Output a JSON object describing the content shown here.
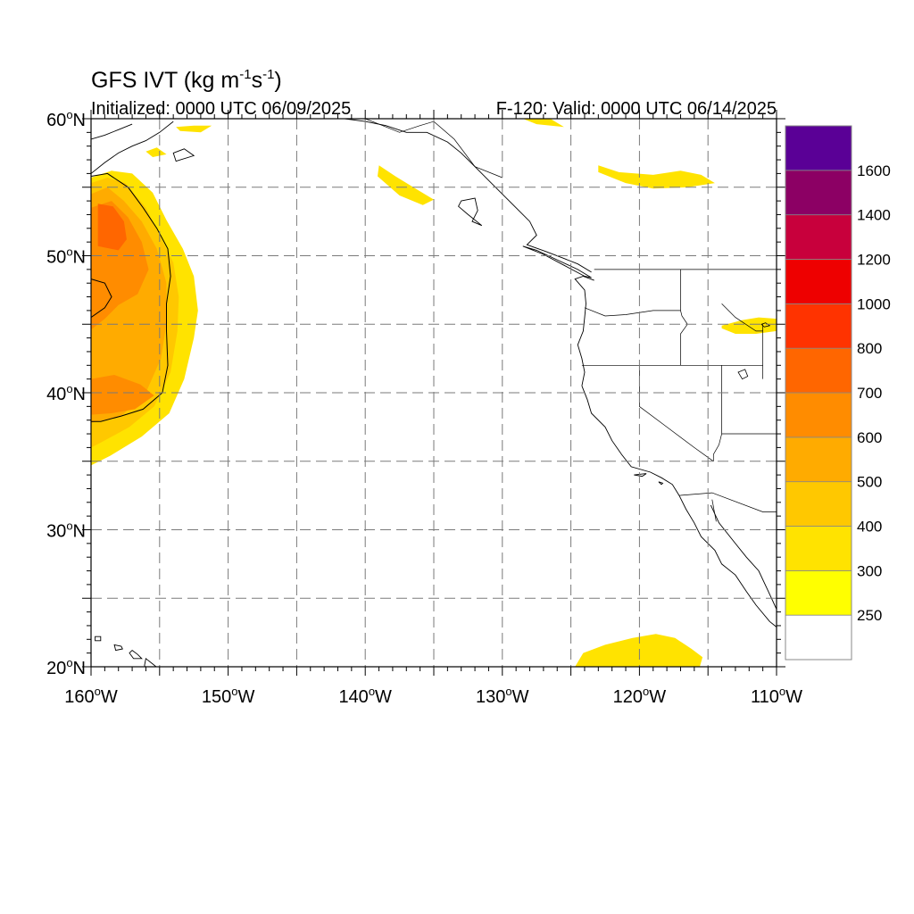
{
  "title": {
    "main": "GFS IVT (kg m",
    "sup1": "-1",
    "mid": "s",
    "sup2": "-1",
    "end": ")"
  },
  "subtitle_left": "Initialized: 0000 UTC 06/09/2025",
  "subtitle_right": "F-120: Valid: 0000 UTC 06/14/2025",
  "map": {
    "projection": "cylindrical equidistant",
    "lon_range": [
      -160,
      -110
    ],
    "lat_range": [
      20,
      60
    ],
    "gridlines": "dashed every 5 degrees",
    "lon_labels": [
      {
        "value": -160,
        "text": "160",
        "deg": "o",
        "hemi": "W"
      },
      {
        "value": -150,
        "text": "150",
        "deg": "o",
        "hemi": "W"
      },
      {
        "value": -140,
        "text": "140",
        "deg": "o",
        "hemi": "W"
      },
      {
        "value": -130,
        "text": "130",
        "deg": "o",
        "hemi": "W"
      },
      {
        "value": -120,
        "text": "120",
        "deg": "o",
        "hemi": "W"
      },
      {
        "value": -110,
        "text": "110",
        "deg": "o",
        "hemi": "W"
      }
    ],
    "lat_labels": [
      {
        "value": 60,
        "text": "60",
        "deg": "o",
        "hemi": "N"
      },
      {
        "value": 50,
        "text": "50",
        "deg": "o",
        "hemi": "N"
      },
      {
        "value": 40,
        "text": "40",
        "deg": "o",
        "hemi": "N"
      },
      {
        "value": 30,
        "text": "30",
        "deg": "o",
        "hemi": "N"
      },
      {
        "value": 20,
        "text": "20",
        "deg": "o",
        "hemi": "N"
      }
    ]
  },
  "colorbar": {
    "levels": [
      "250",
      "300",
      "400",
      "500",
      "600",
      "700",
      "800",
      "1000",
      "1200",
      "1400",
      "1600"
    ],
    "colors": [
      "#ffffff",
      "#ffff00",
      "#ffe300",
      "#ffc800",
      "#ffab00",
      "#ff8c00",
      "#ff6600",
      "#ff3300",
      "#ee0000",
      "#c8003c",
      "#8c0064",
      "#5a0096"
    ]
  },
  "ivt_regions": [
    {
      "name": "west-plume-outer",
      "color": "#ffe300",
      "points": [
        [
          -160,
          55.7
        ],
        [
          -158.5,
          56.2
        ],
        [
          -157,
          56
        ],
        [
          -155.5,
          54.6
        ],
        [
          -154.5,
          52.6
        ],
        [
          -153.3,
          50.5
        ],
        [
          -152.5,
          48.5
        ],
        [
          -152.2,
          46
        ],
        [
          -152.5,
          44
        ],
        [
          -153.2,
          41
        ],
        [
          -154.3,
          38.5
        ],
        [
          -156.3,
          36.8
        ],
        [
          -158.6,
          35.4
        ],
        [
          -160,
          34.7
        ]
      ]
    },
    {
      "name": "west-plume-400",
      "color": "#ffc800",
      "points": [
        [
          -160,
          55.3
        ],
        [
          -158.8,
          55.7
        ],
        [
          -157.5,
          55.3
        ],
        [
          -156,
          53.5
        ],
        [
          -155,
          51.5
        ],
        [
          -154,
          49.5
        ],
        [
          -153.6,
          47
        ],
        [
          -153.7,
          44.5
        ],
        [
          -154.2,
          41.5
        ],
        [
          -155.4,
          39
        ],
        [
          -157.2,
          37.5
        ],
        [
          -159.4,
          36.3
        ],
        [
          -160,
          36
        ]
      ]
    },
    {
      "name": "west-plume-500",
      "color": "#ffab00",
      "points": [
        [
          -160,
          54.5
        ],
        [
          -158.8,
          55
        ],
        [
          -157.6,
          54
        ],
        [
          -156.3,
          52.5
        ],
        [
          -155.2,
          50.5
        ],
        [
          -154.5,
          48
        ],
        [
          -154.5,
          45
        ],
        [
          -154.9,
          42.5
        ],
        [
          -156,
          40
        ],
        [
          -157.8,
          38.3
        ],
        [
          -160,
          37.8
        ]
      ]
    },
    {
      "name": "west-plume-600",
      "color": "#ff8c00",
      "points": [
        [
          -160,
          53.5
        ],
        [
          -158.5,
          54
        ],
        [
          -157.3,
          52.8
        ],
        [
          -156.3,
          51
        ],
        [
          -155.8,
          49
        ],
        [
          -156.6,
          47.2
        ],
        [
          -158,
          46.4
        ],
        [
          -159,
          45.4
        ],
        [
          -160,
          44.6
        ]
      ]
    },
    {
      "name": "west-plume-600b",
      "color": "#ff8c00",
      "points": [
        [
          -160,
          41
        ],
        [
          -158.3,
          41.3
        ],
        [
          -156.4,
          40.6
        ],
        [
          -155.4,
          39.8
        ],
        [
          -156.8,
          38.8
        ],
        [
          -158.5,
          38.5
        ],
        [
          -160,
          38.4
        ]
      ]
    },
    {
      "name": "west-plume-700",
      "color": "#ff6600",
      "points": [
        [
          -159.5,
          53.8
        ],
        [
          -158.4,
          53.6
        ],
        [
          -157.6,
          52.5
        ],
        [
          -157.4,
          51.2
        ],
        [
          -158,
          50.4
        ],
        [
          -159.5,
          50.7
        ]
      ]
    },
    {
      "name": "sw-blob",
      "color": "#ffe300",
      "points": [
        [
          -124.7,
          20
        ],
        [
          -124.1,
          21
        ],
        [
          -122.5,
          21.6
        ],
        [
          -120.5,
          22.1
        ],
        [
          -118.8,
          22.4
        ],
        [
          -117.4,
          22.1
        ],
        [
          -116.2,
          21.3
        ],
        [
          -115.4,
          20.7
        ],
        [
          -115.6,
          20
        ]
      ]
    },
    {
      "name": "north-streak",
      "color": "#ffe300",
      "points": [
        [
          -123,
          56.6
        ],
        [
          -121.5,
          56.1
        ],
        [
          -119,
          55.9
        ],
        [
          -117,
          56.2
        ],
        [
          -115.5,
          55.9
        ],
        [
          -114.5,
          55.3
        ],
        [
          -116.5,
          55
        ],
        [
          -119,
          54.9
        ],
        [
          -121,
          55.3
        ],
        [
          -123,
          56.1
        ]
      ]
    },
    {
      "name": "gulf-streak",
      "color": "#ffe300",
      "points": [
        [
          -139,
          56.6
        ],
        [
          -137.8,
          55.8
        ],
        [
          -136.5,
          55
        ],
        [
          -135,
          54.1
        ],
        [
          -135.8,
          53.7
        ],
        [
          -137.5,
          54.4
        ],
        [
          -139.1,
          55.8
        ]
      ]
    },
    {
      "name": "top-streak",
      "color": "#ffe300",
      "points": [
        [
          -128.5,
          60
        ],
        [
          -126.5,
          60
        ],
        [
          -125.5,
          59.4
        ],
        [
          -127.5,
          59.6
        ]
      ]
    },
    {
      "name": "alaska-streak",
      "color": "#ffe300",
      "points": [
        [
          -153.8,
          59.4
        ],
        [
          -152.5,
          59.5
        ],
        [
          -151.2,
          59.5
        ],
        [
          -152,
          59
        ],
        [
          -153.5,
          59.1
        ]
      ]
    },
    {
      "name": "small-patch-a",
      "color": "#ffe300",
      "points": [
        [
          -156,
          57.6
        ],
        [
          -155.2,
          57.9
        ],
        [
          -154.5,
          57.4
        ],
        [
          -155.5,
          57.2
        ]
      ]
    },
    {
      "name": "small-patch-b",
      "color": "#ffe300",
      "points": [
        [
          -114,
          44.9
        ],
        [
          -112.5,
          45.3
        ],
        [
          -111.3,
          45.5
        ],
        [
          -110,
          45.4
        ],
        [
          -110,
          44.5
        ],
        [
          -111.5,
          44.3
        ],
        [
          -113,
          44.3
        ],
        [
          -114,
          44.7
        ]
      ]
    }
  ],
  "contour_600": [
    [
      -160,
      55.8
    ],
    [
      -158.8,
      56
    ],
    [
      -157.3,
      55
    ],
    [
      -156.2,
      53.5
    ],
    [
      -155.2,
      52
    ],
    [
      -154.4,
      50.5
    ],
    [
      -154.2,
      48.5
    ],
    [
      -154.5,
      46.5
    ],
    [
      -154.5,
      44.5
    ],
    [
      -154.4,
      42
    ],
    [
      -154.8,
      40
    ],
    [
      -156.2,
      38.8
    ],
    [
      -157.8,
      38.3
    ],
    [
      -159.3,
      37.9
    ],
    [
      -160,
      37.9
    ]
  ],
  "contour_600_inner": [
    [
      -160,
      45.5
    ],
    [
      -159,
      46.2
    ],
    [
      -158.5,
      47
    ],
    [
      -159,
      48
    ],
    [
      -160,
      48.3
    ]
  ],
  "coastlines": [
    [
      [
        -124.2,
        40.5
      ],
      [
        -124,
        41.5
      ],
      [
        -124.2,
        42.5
      ],
      [
        -124.5,
        43.5
      ],
      [
        -124.1,
        44.5
      ],
      [
        -124,
        45.5
      ],
      [
        -123.9,
        46.5
      ],
      [
        -124,
        47.5
      ],
      [
        -124.7,
        48.3
      ],
      [
        -124.1,
        48.5
      ],
      [
        -123.3,
        48.2
      ]
    ],
    [
      [
        -124.2,
        40.5
      ],
      [
        -123.8,
        39.5
      ],
      [
        -123.5,
        38.5
      ],
      [
        -122.5,
        37.5
      ],
      [
        -122,
        36.5
      ],
      [
        -121.3,
        35.5
      ],
      [
        -120.6,
        34.6
      ],
      [
        -119.2,
        34.2
      ],
      [
        -118.4,
        33.8
      ],
      [
        -117.6,
        33.3
      ],
      [
        -117.1,
        32.5
      ],
      [
        -116.6,
        31.5
      ],
      [
        -116,
        30.5
      ],
      [
        -115.5,
        29.5
      ],
      [
        -114.5,
        28.5
      ],
      [
        -114,
        27.5
      ],
      [
        -113,
        26.7
      ],
      [
        -112.2,
        25.5
      ],
      [
        -111.5,
        24.5
      ],
      [
        -110.5,
        23.3
      ],
      [
        -110,
        22.9
      ]
    ],
    [
      [
        -114.8,
        31.8
      ],
      [
        -114.2,
        30.5
      ],
      [
        -113,
        29
      ],
      [
        -112.2,
        28
      ],
      [
        -111.3,
        27
      ],
      [
        -110.6,
        25.5
      ],
      [
        -110,
        24.2
      ]
    ],
    [
      [
        -123.5,
        48.8
      ],
      [
        -124.5,
        49.4
      ],
      [
        -125.5,
        49.8
      ],
      [
        -126.8,
        50.3
      ],
      [
        -128.2,
        50.8
      ],
      [
        -127.5,
        51.5
      ],
      [
        -128,
        52.5
      ],
      [
        -129,
        53.5
      ],
      [
        -130,
        54.5
      ],
      [
        -131,
        55.5
      ],
      [
        -132,
        56.5
      ],
      [
        -133,
        57.5
      ],
      [
        -134,
        58.3
      ],
      [
        -135.5,
        59
      ],
      [
        -137,
        59
      ],
      [
        -138.5,
        59.5
      ],
      [
        -140,
        59.8
      ],
      [
        -141.5,
        60
      ]
    ],
    [
      [
        -154,
        59.8
      ],
      [
        -155,
        59
      ],
      [
        -156,
        58.4
      ],
      [
        -157,
        58
      ],
      [
        -158,
        57.5
      ],
      [
        -159,
        56.8
      ],
      [
        -160,
        56
      ]
    ],
    [
      [
        -157,
        59.6
      ],
      [
        -158,
        59.2
      ],
      [
        -159,
        58.8
      ],
      [
        -160,
        58.5
      ]
    ]
  ],
  "islands": [
    [
      [
        -156,
        20.6
      ],
      [
        -155.5,
        20.2
      ],
      [
        -155,
        19.8
      ],
      [
        -155.9,
        19.6
      ],
      [
        -156.1,
        20.1
      ]
    ],
    [
      [
        -157,
        21.2
      ],
      [
        -156.6,
        20.9
      ],
      [
        -156.3,
        20.6
      ],
      [
        -156.9,
        20.6
      ],
      [
        -157.2,
        21
      ]
    ],
    [
      [
        -158.3,
        21.6
      ],
      [
        -157.8,
        21.5
      ],
      [
        -157.7,
        21.3
      ],
      [
        -158.2,
        21.2
      ]
    ],
    [
      [
        -159.7,
        22.2
      ],
      [
        -159.3,
        22.2
      ],
      [
        -159.3,
        21.9
      ],
      [
        -159.7,
        21.9
      ]
    ],
    [
      [
        -120.4,
        34
      ],
      [
        -119.5,
        34.1
      ],
      [
        -119.8,
        33.9
      ]
    ],
    [
      [
        -118.6,
        33.5
      ],
      [
        -118.3,
        33.4
      ],
      [
        -118.4,
        33.3
      ]
    ],
    [
      [
        -133,
        54
      ],
      [
        -132,
        54.2
      ],
      [
        -131.8,
        53.3
      ],
      [
        -132.2,
        52.5
      ],
      [
        -131.5,
        52.2
      ],
      [
        -132.5,
        53
      ],
      [
        -133.2,
        53.6
      ]
    ],
    [
      [
        -128.5,
        50.7
      ],
      [
        -127,
        50.1
      ],
      [
        -125.5,
        49.3
      ],
      [
        -124,
        48.5
      ],
      [
        -123.5,
        48.4
      ],
      [
        -124.5,
        49
      ],
      [
        -126,
        49.7
      ],
      [
        -127.5,
        50.4
      ]
    ],
    [
      [
        -154,
        57.5
      ],
      [
        -153.2,
        57.8
      ],
      [
        -152.5,
        57.3
      ],
      [
        -153.8,
        56.9
      ]
    ]
  ],
  "lakes": [
    [
      [
        -112.8,
        41.5
      ],
      [
        -112.3,
        41.7
      ],
      [
        -112.1,
        41.2
      ],
      [
        -112.5,
        41
      ]
    ],
    [
      [
        -111.1,
        45
      ],
      [
        -110.8,
        45.1
      ],
      [
        -110.5,
        44.9
      ],
      [
        -110.9,
        44.8
      ]
    ]
  ],
  "borders": [
    [
      [
        -123.3,
        49
      ],
      [
        -110,
        49
      ]
    ],
    [
      [
        -117,
        49
      ],
      [
        -117,
        46
      ],
      [
        -116.9,
        45.6
      ],
      [
        -116.5,
        45
      ],
      [
        -117,
        44.3
      ],
      [
        -117,
        42
      ]
    ],
    [
      [
        -124,
        46.2
      ],
      [
        -122.5,
        45.6
      ],
      [
        -121,
        45.7
      ],
      [
        -119,
        46
      ],
      [
        -117,
        46
      ]
    ],
    [
      [
        -124.2,
        42
      ],
      [
        -111,
        42
      ]
    ],
    [
      [
        -120,
        42
      ],
      [
        -120,
        39
      ],
      [
        -118,
        37.5
      ],
      [
        -116,
        36
      ],
      [
        -114.6,
        35
      ]
    ],
    [
      [
        -114,
        42
      ],
      [
        -114,
        37
      ],
      [
        -114.2,
        36.2
      ],
      [
        -114.6,
        35.5
      ],
      [
        -114.6,
        35
      ]
    ],
    [
      [
        -114,
        37
      ],
      [
        -110,
        37
      ]
    ],
    [
      [
        -117.1,
        32.5
      ],
      [
        -114.7,
        32.7
      ],
      [
        -111,
        31.3
      ],
      [
        -110,
        31.3
      ]
    ],
    [
      [
        -114,
        46.5
      ],
      [
        -113,
        45.5
      ],
      [
        -111.5,
        44.5
      ],
      [
        -111,
        44.5
      ]
    ],
    [
      [
        -111,
        45
      ],
      [
        -111,
        41
      ]
    ],
    [
      [
        -140,
        60
      ],
      [
        -139,
        59.6
      ],
      [
        -137.5,
        59
      ],
      [
        -136,
        59.5
      ],
      [
        -135,
        59.8
      ],
      [
        -133.5,
        58.5
      ],
      [
        -132,
        56.5
      ],
      [
        -130,
        55.7
      ]
    ],
    [
      [
        -114.7,
        32.2
      ],
      [
        -114.4,
        30.6
      ]
    ]
  ]
}
